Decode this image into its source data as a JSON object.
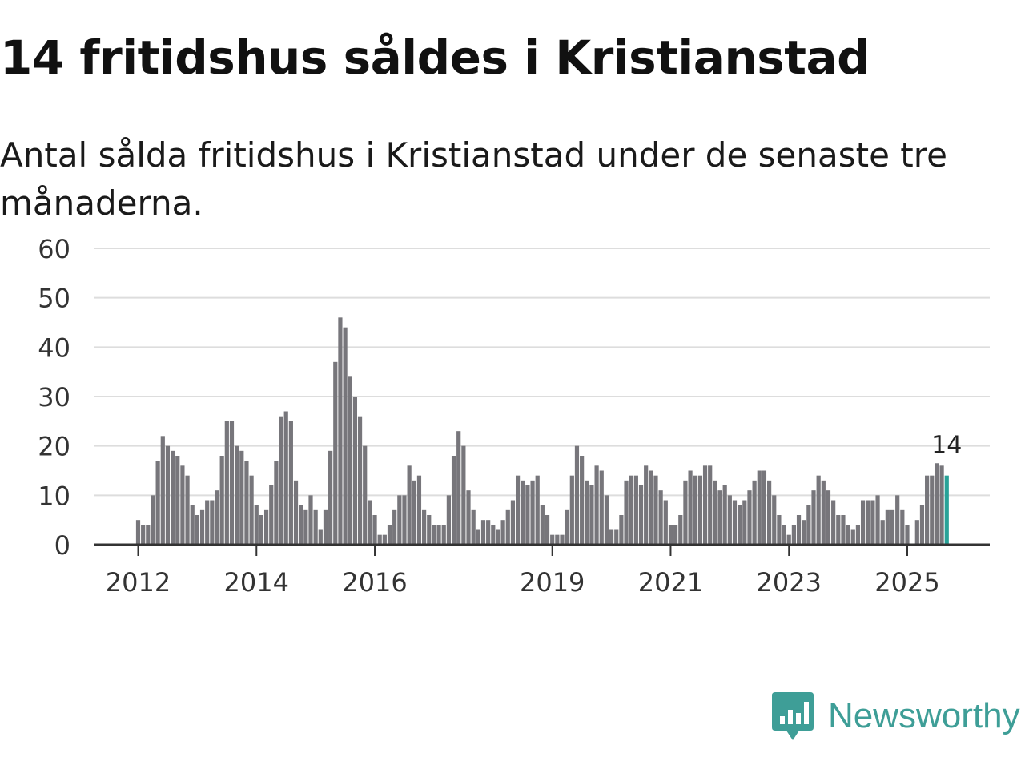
{
  "title": "14 fritidshus såldes i Kristianstad",
  "subtitle": "Antal sålda fritidshus i Kristianstad under de senaste tre månaderna.",
  "brand": {
    "name": "Newsworthy",
    "icon": "newsworthy-logo-icon",
    "color": "#3e9e97"
  },
  "colors": {
    "bar": "#77767b",
    "highlight": "#28a298",
    "grid": "#dddddd",
    "axis": "#333333",
    "text": "#333333"
  },
  "chart_data": {
    "type": "bar",
    "title": "14 fritidshus såldes i Kristianstad",
    "xlabel": "",
    "ylabel": "",
    "ylim": [
      0,
      60
    ],
    "yticks": [
      0,
      10,
      20,
      30,
      40,
      50,
      60
    ],
    "xticks": [
      {
        "index": 0,
        "label": "2012"
      },
      {
        "index": 24,
        "label": "2014"
      },
      {
        "index": 48,
        "label": "2016"
      },
      {
        "index": 84,
        "label": "2019"
      },
      {
        "index": 108,
        "label": "2021"
      },
      {
        "index": 132,
        "label": "2023"
      },
      {
        "index": 156,
        "label": "2025"
      }
    ],
    "start": "2012-01",
    "values": [
      5,
      4,
      4,
      10,
      17,
      22,
      20,
      19,
      18,
      16,
      14,
      8,
      6,
      7,
      9,
      9,
      11,
      18,
      25,
      25,
      20,
      19,
      17,
      14,
      8,
      6,
      7,
      12,
      17,
      26,
      27,
      25,
      13,
      8,
      7,
      10,
      7,
      3,
      7,
      19,
      37,
      46,
      44,
      34,
      30,
      26,
      20,
      9,
      6,
      2,
      2,
      4,
      7,
      10,
      10,
      16,
      13,
      14,
      7,
      6,
      4,
      4,
      4,
      10,
      18,
      23,
      20,
      11,
      7,
      3,
      5,
      5,
      4,
      3,
      5,
      7,
      9,
      14,
      13,
      12,
      13,
      14,
      8,
      6,
      2,
      2,
      2,
      7,
      14,
      20,
      18,
      13,
      12,
      16,
      15,
      10,
      3,
      3,
      6,
      13,
      14,
      14,
      12,
      16,
      15,
      14,
      11,
      9,
      4,
      4,
      6,
      13,
      15,
      14,
      14,
      16,
      16,
      13,
      11,
      12,
      10,
      9,
      8,
      9,
      11,
      13,
      15,
      15,
      13,
      10,
      6,
      4,
      2,
      4,
      6,
      5,
      8,
      11,
      14,
      13,
      11,
      9,
      6,
      6,
      4,
      3,
      4,
      9,
      9,
      9,
      10,
      5,
      7,
      7,
      10,
      7,
      4,
      0,
      5,
      8,
      14,
      14,
      16.5,
      16,
      14
    ],
    "highlight_index": 164,
    "annotation": {
      "index": 164,
      "label": "14"
    }
  }
}
